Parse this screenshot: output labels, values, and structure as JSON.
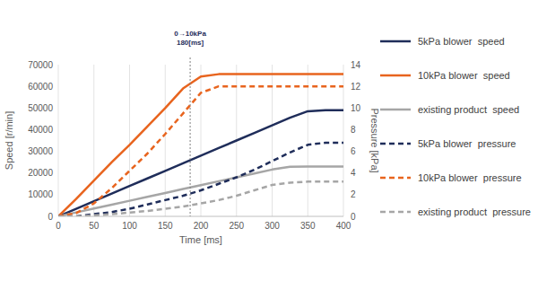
{
  "chart_data": {
    "type": "line",
    "x_label": "Time [ms]",
    "y_label": "Speed [r/min]",
    "y2_label": "Pressure [kPa]",
    "x": [
      0,
      25,
      50,
      75,
      100,
      125,
      150,
      175,
      200,
      225,
      250,
      275,
      300,
      325,
      350,
      375,
      400
    ],
    "xlim": [
      0,
      400
    ],
    "xticks": [
      0,
      50,
      100,
      150,
      200,
      250,
      300,
      350,
      400
    ],
    "ylim": [
      0,
      70000
    ],
    "yticks": [
      0,
      10000,
      20000,
      30000,
      40000,
      50000,
      60000,
      70000
    ],
    "y2lim": [
      0,
      14
    ],
    "y2ticks": [
      0,
      2,
      4,
      6,
      8,
      10,
      12,
      14
    ],
    "grid": "x",
    "legend": "right",
    "annotations": [
      {
        "x": 185,
        "lines": [
          "0→10kPa",
          "180[ms]"
        ]
      }
    ],
    "series": [
      {
        "name": "5kPa blower  speed",
        "color": "#1f2d5a",
        "line_style": "solid",
        "values": [
          0,
          3500,
          7000,
          10500,
          14000,
          17500,
          21000,
          24500,
          28000,
          31500,
          35000,
          38500,
          42000,
          45500,
          48500,
          49000,
          49000
        ]
      },
      {
        "name": "10kPa blower  speed",
        "color": "#e8641e",
        "line_style": "solid",
        "values": [
          0,
          8000,
          16500,
          25000,
          33000,
          41500,
          50000,
          59000,
          64500,
          65600,
          65600,
          65600,
          65600,
          65600,
          65600,
          65600,
          65600
        ]
      },
      {
        "name": "existing product  speed",
        "color": "#a6a6a6",
        "line_style": "solid",
        "values": [
          0,
          1800,
          3600,
          5400,
          7200,
          9000,
          10800,
          12600,
          14400,
          16200,
          18000,
          19800,
          21600,
          22900,
          23000,
          23000,
          23000
        ]
      },
      {
        "name": "5kPa blower  pressure",
        "color": "#1f2d5a",
        "line_style": "dashed",
        "axis": "y2",
        "values": [
          0,
          0,
          0.2,
          0.4,
          0.7,
          1.1,
          1.5,
          1.9,
          2.4,
          3.0,
          3.6,
          4.3,
          5.1,
          5.9,
          6.6,
          6.8,
          6.8
        ]
      },
      {
        "name": "10kPa blower  pressure",
        "color": "#e8641e",
        "line_style": "dashed",
        "axis": "y2",
        "values": [
          0,
          0.3,
          1.2,
          2.6,
          4.2,
          5.8,
          7.6,
          9.5,
          11.4,
          12,
          12,
          12,
          12,
          12,
          12,
          12,
          12
        ]
      },
      {
        "name": "existing product  pressure",
        "color": "#a6a6a6",
        "line_style": "dashed",
        "axis": "y2",
        "values": [
          0,
          0,
          0.1,
          0.2,
          0.35,
          0.5,
          0.7,
          0.9,
          1.2,
          1.5,
          1.9,
          2.4,
          2.9,
          3.1,
          3.2,
          3.2,
          3.2
        ]
      }
    ]
  }
}
